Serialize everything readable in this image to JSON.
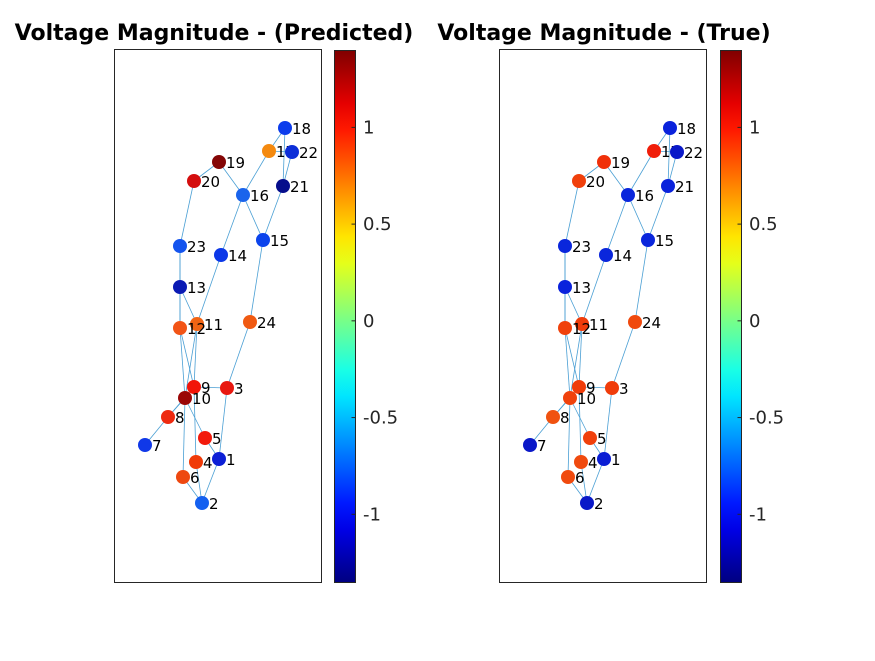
{
  "panels": [
    {
      "id": "predicted",
      "title": "Voltage Magnitude - (Predicted)",
      "nodes": [
        {
          "id": "1",
          "label": "1",
          "color": "#0c1fd6"
        },
        {
          "id": "2",
          "label": "2",
          "color": "#1460f0"
        },
        {
          "id": "3",
          "label": "3",
          "color": "#e81810"
        },
        {
          "id": "4",
          "label": "4",
          "color": "#f03a08"
        },
        {
          "id": "5",
          "label": "5",
          "color": "#f21a0c"
        },
        {
          "id": "6",
          "label": "6",
          "color": "#ee4810"
        },
        {
          "id": "7",
          "label": "7",
          "color": "#1038e8"
        },
        {
          "id": "8",
          "label": "8",
          "color": "#ee2a10"
        },
        {
          "id": "9",
          "label": "9",
          "color": "#f21408"
        },
        {
          "id": "10",
          "label": "10",
          "color": "#9a0606"
        },
        {
          "id": "11",
          "label": "11",
          "color": "#f26414"
        },
        {
          "id": "12",
          "label": "12",
          "color": "#f25416"
        },
        {
          "id": "13",
          "label": "13",
          "color": "#0a1ab4"
        },
        {
          "id": "14",
          "label": "14",
          "color": "#0c38e8"
        },
        {
          "id": "15",
          "label": "15",
          "color": "#0c44ec"
        },
        {
          "id": "16",
          "label": "16",
          "color": "#1a64ec"
        },
        {
          "id": "17",
          "label": "17",
          "color": "#f48a10"
        },
        {
          "id": "18",
          "label": "18",
          "color": "#0c3cec"
        },
        {
          "id": "19",
          "label": "19",
          "color": "#840606"
        },
        {
          "id": "20",
          "label": "20",
          "color": "#d40e0e"
        },
        {
          "id": "21",
          "label": "21",
          "color": "#060e8c"
        },
        {
          "id": "22",
          "label": "22",
          "color": "#0c2ed8"
        },
        {
          "id": "23",
          "label": "23",
          "color": "#1454ee"
        },
        {
          "id": "24",
          "label": "24",
          "color": "#f05a12"
        }
      ]
    },
    {
      "id": "true",
      "title": "Voltage Magnitude - (True)",
      "nodes": [
        {
          "id": "1",
          "label": "1",
          "color": "#0a1ed4"
        },
        {
          "id": "2",
          "label": "2",
          "color": "#0a18c8"
        },
        {
          "id": "3",
          "label": "3",
          "color": "#f03c0a"
        },
        {
          "id": "4",
          "label": "4",
          "color": "#f04a0e"
        },
        {
          "id": "5",
          "label": "5",
          "color": "#f0400c"
        },
        {
          "id": "6",
          "label": "6",
          "color": "#f04a0e"
        },
        {
          "id": "7",
          "label": "7",
          "color": "#0a18c8"
        },
        {
          "id": "8",
          "label": "8",
          "color": "#f05210"
        },
        {
          "id": "9",
          "label": "9",
          "color": "#f03c0a"
        },
        {
          "id": "10",
          "label": "10",
          "color": "#f0420c"
        },
        {
          "id": "11",
          "label": "11",
          "color": "#f03c0a"
        },
        {
          "id": "12",
          "label": "12",
          "color": "#f0420c"
        },
        {
          "id": "13",
          "label": "13",
          "color": "#0a22dc"
        },
        {
          "id": "14",
          "label": "14",
          "color": "#0a26dc"
        },
        {
          "id": "15",
          "label": "15",
          "color": "#0a26dc"
        },
        {
          "id": "16",
          "label": "16",
          "color": "#0a26dc"
        },
        {
          "id": "17",
          "label": "17",
          "color": "#f01e0a"
        },
        {
          "id": "18",
          "label": "18",
          "color": "#0a22dc"
        },
        {
          "id": "19",
          "label": "19",
          "color": "#f0300a"
        },
        {
          "id": "20",
          "label": "20",
          "color": "#f0400c"
        },
        {
          "id": "21",
          "label": "21",
          "color": "#0a22dc"
        },
        {
          "id": "22",
          "label": "22",
          "color": "#0a18c8"
        },
        {
          "id": "23",
          "label": "23",
          "color": "#0a26dc"
        },
        {
          "id": "24",
          "label": "24",
          "color": "#f04a0e"
        }
      ]
    }
  ],
  "edges": [
    [
      "1",
      "2"
    ],
    [
      "1",
      "3"
    ],
    [
      "1",
      "5"
    ],
    [
      "2",
      "4"
    ],
    [
      "2",
      "6"
    ],
    [
      "3",
      "9"
    ],
    [
      "3",
      "24"
    ],
    [
      "4",
      "9"
    ],
    [
      "5",
      "10"
    ],
    [
      "6",
      "10"
    ],
    [
      "7",
      "8"
    ],
    [
      "8",
      "9"
    ],
    [
      "8",
      "10"
    ],
    [
      "9",
      "11"
    ],
    [
      "9",
      "12"
    ],
    [
      "10",
      "11"
    ],
    [
      "10",
      "12"
    ],
    [
      "11",
      "13"
    ],
    [
      "11",
      "14"
    ],
    [
      "12",
      "13"
    ],
    [
      "12",
      "23"
    ],
    [
      "13",
      "23"
    ],
    [
      "14",
      "16"
    ],
    [
      "15",
      "16"
    ],
    [
      "15",
      "21"
    ],
    [
      "15",
      "24"
    ],
    [
      "16",
      "17"
    ],
    [
      "16",
      "19"
    ],
    [
      "17",
      "18"
    ],
    [
      "17",
      "22"
    ],
    [
      "18",
      "21"
    ],
    [
      "19",
      "20"
    ],
    [
      "20",
      "23"
    ],
    [
      "21",
      "22"
    ]
  ],
  "colorbar": {
    "colormap": "jet",
    "range": [
      -1.35,
      1.4
    ],
    "ticks": [
      {
        "value": 1,
        "label": "1"
      },
      {
        "value": 0.5,
        "label": "0.5"
      },
      {
        "value": 0,
        "label": "0"
      },
      {
        "value": -0.5,
        "label": "-0.5"
      },
      {
        "value": -1,
        "label": "-1"
      }
    ]
  },
  "colors": {
    "edge": "#4a9fd4",
    "frame": "#262626"
  }
}
